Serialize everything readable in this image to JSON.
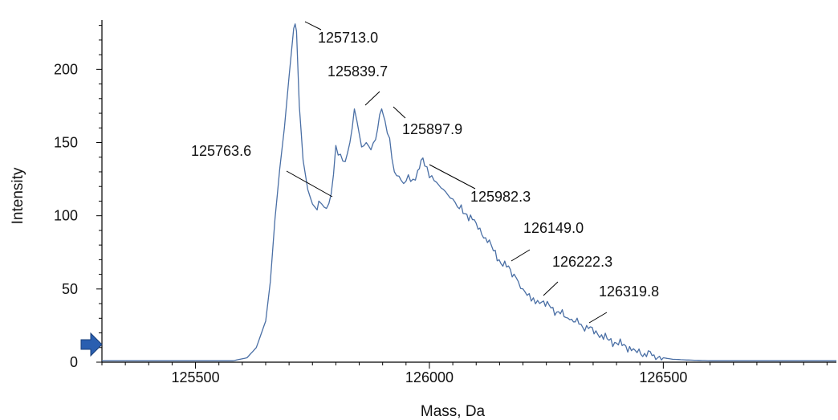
{
  "chart_data": {
    "type": "line",
    "title": "",
    "xlabel": "Mass, Da",
    "ylabel": "Intensity",
    "xlim": [
      125300,
      126870
    ],
    "ylim": [
      0,
      232
    ],
    "x_ticks": [
      125500,
      126000,
      126500
    ],
    "x_tick_labels": [
      "125500",
      "126000",
      "126500"
    ],
    "y_ticks": [
      0,
      50,
      100,
      150,
      200
    ],
    "y_tick_labels": [
      "0",
      "50",
      "100",
      "150",
      "200"
    ],
    "grid": false,
    "legend": "none",
    "line_color": "#4a6fa5",
    "marker_color": "#2a5fb0",
    "series": [
      {
        "x": [
          125300,
          125400,
          125500,
          125580,
          125610,
          125630,
          125650,
          125660,
          125670,
          125680,
          125690,
          125700,
          125710,
          125713,
          125716,
          125722,
          125730,
          125740,
          125750,
          125760,
          125763.6,
          125770,
          125780,
          125790,
          125800,
          125810,
          125820,
          125830,
          125835,
          125839.7,
          125845,
          125855,
          125865,
          125875,
          125885,
          125897.9,
          125905,
          125915,
          125925,
          125935,
          125945,
          125955,
          125965,
          125975,
          125982.3,
          125990,
          126000,
          126010,
          126020,
          126030,
          126045,
          126060,
          126080,
          126100,
          126120,
          126149.0,
          126165,
          126185,
          126200,
          126222.3,
          126240,
          126260,
          126280,
          126300,
          126319.8,
          126340,
          126360,
          126380,
          126400,
          126420,
          126440,
          126460,
          126480,
          126500,
          126520,
          126550,
          126600,
          126700,
          126870
        ],
        "y": [
          1,
          1,
          1,
          1,
          3,
          10,
          28,
          55,
          98,
          132,
          160,
          195,
          228,
          231,
          226,
          175,
          138,
          118,
          108,
          104,
          110,
          108,
          105,
          115,
          148,
          142,
          137,
          150,
          160,
          173,
          165,
          147,
          150,
          145,
          152,
          173,
          165,
          153,
          130,
          127,
          122,
          128,
          125,
          131,
          138,
          134,
          126,
          124,
          121,
          118,
          112,
          106,
          101,
          95,
          85,
          70,
          65,
          58,
          50,
          44,
          41,
          37,
          33,
          29,
          26,
          23,
          19,
          16,
          13,
          11,
          8,
          6,
          5,
          3,
          2,
          1.5,
          1,
          1,
          1
        ]
      }
    ],
    "annotations": [
      {
        "label": "125713.0",
        "x": 125713.0,
        "y": 231
      },
      {
        "label": "125839.7",
        "x": 125839.7,
        "y": 173
      },
      {
        "label": "125897.9",
        "x": 125897.9,
        "y": 173
      },
      {
        "label": "125763.6",
        "x": 125763.6,
        "y": 110
      },
      {
        "label": "125982.3",
        "x": 125982.3,
        "y": 134
      },
      {
        "label": "126149.0",
        "x": 126149.0,
        "y": 70
      },
      {
        "label": "126222.3",
        "x": 126222.3,
        "y": 44
      },
      {
        "label": "126319.8",
        "x": 126319.8,
        "y": 26
      }
    ]
  }
}
